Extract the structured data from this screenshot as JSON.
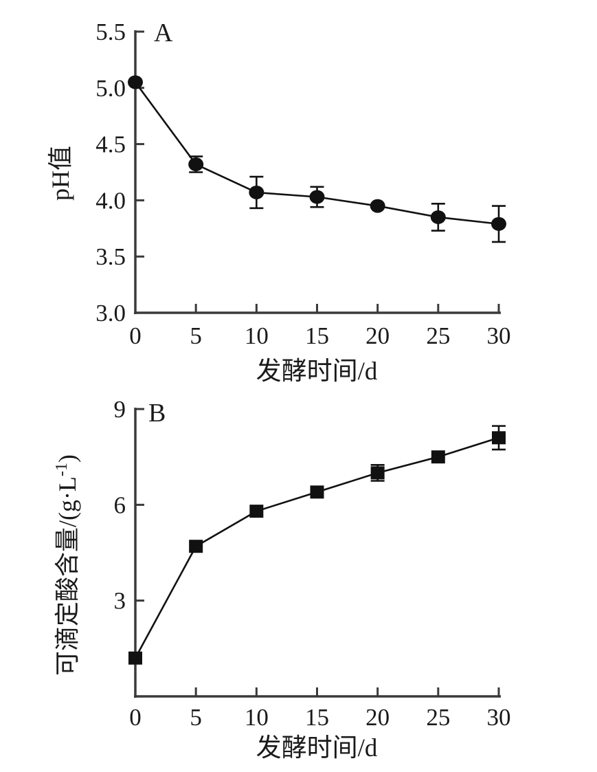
{
  "figure": {
    "background": "#ffffff",
    "axis_color": "#3a3a3a",
    "ink_color": "#111111"
  },
  "chart_data": [
    {
      "panel_label": "A",
      "type": "line",
      "marker": "circle",
      "x": [
        0,
        5,
        10,
        15,
        20,
        25,
        30
      ],
      "y": [
        5.05,
        4.32,
        4.07,
        4.03,
        3.95,
        3.85,
        3.79
      ],
      "y_err": [
        0,
        0.07,
        0.14,
        0.09,
        0,
        0.12,
        0.16
      ],
      "xlabel": "发酵时间/d",
      "ylabel": "pH值",
      "xlim": [
        0,
        30
      ],
      "ylim": [
        3.0,
        5.5
      ],
      "x_tick_values": [
        0,
        5,
        10,
        15,
        20,
        25,
        30
      ],
      "x_tick_labels": [
        "0",
        "5",
        "10",
        "15",
        "20",
        "25",
        "30"
      ],
      "y_tick_values": [
        5.5,
        5.0,
        4.5,
        4.0,
        3.5,
        3.0
      ],
      "y_tick_labels": [
        "5.5",
        "5.0",
        "4.5",
        "4.0",
        "3.5",
        "3.0"
      ],
      "grid": false,
      "legend": null
    },
    {
      "panel_label": "B",
      "type": "line",
      "marker": "square",
      "x": [
        0,
        5,
        10,
        15,
        20,
        25,
        30
      ],
      "y": [
        1.2,
        4.7,
        5.8,
        6.4,
        7.0,
        7.5,
        8.1
      ],
      "y_err": [
        0,
        0,
        0,
        0,
        0.25,
        0,
        0.37
      ],
      "xlabel": "发酵时间/d",
      "ylabel": "可滴定酸含量/(g·L⁻¹)",
      "xlim": [
        0,
        30
      ],
      "ylim": [
        0,
        9
      ],
      "x_tick_values": [
        0,
        5,
        10,
        15,
        20,
        25,
        30
      ],
      "x_tick_labels": [
        "0",
        "5",
        "10",
        "15",
        "20",
        "25",
        "30"
      ],
      "y_tick_values": [
        9,
        6,
        3
      ],
      "y_tick_labels": [
        "9",
        "6",
        "3"
      ],
      "grid": false,
      "legend": null
    }
  ]
}
